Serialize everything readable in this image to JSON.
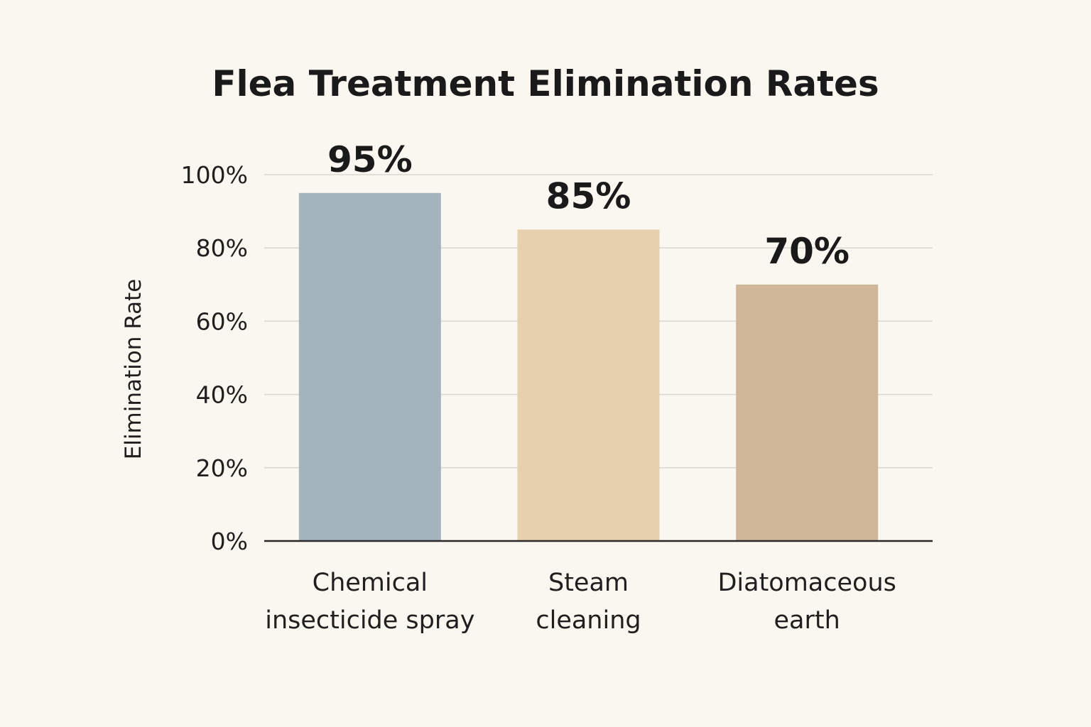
{
  "chart_data": {
    "type": "bar",
    "title": "Flea Treatment Elimination Rates",
    "xlabel": "",
    "ylabel": "Elimination Rate",
    "categories": [
      [
        "Chemical",
        "insecticide spray"
      ],
      [
        "Steam",
        "cleaning"
      ],
      [
        "Diatomaceous",
        "earth"
      ]
    ],
    "values": [
      95,
      85,
      70
    ],
    "data_labels": [
      "95%",
      "85%",
      "70%"
    ],
    "ylim": [
      0,
      100
    ],
    "yticks": [
      0,
      20,
      40,
      60,
      80,
      100
    ],
    "ytick_labels": [
      "0%",
      "20%",
      "40%",
      "60%",
      "80%",
      "100%"
    ],
    "colors": [
      "#a3b4bc",
      "#e6d0ad",
      "#d0b699"
    ],
    "grid": true,
    "legend": "none"
  }
}
